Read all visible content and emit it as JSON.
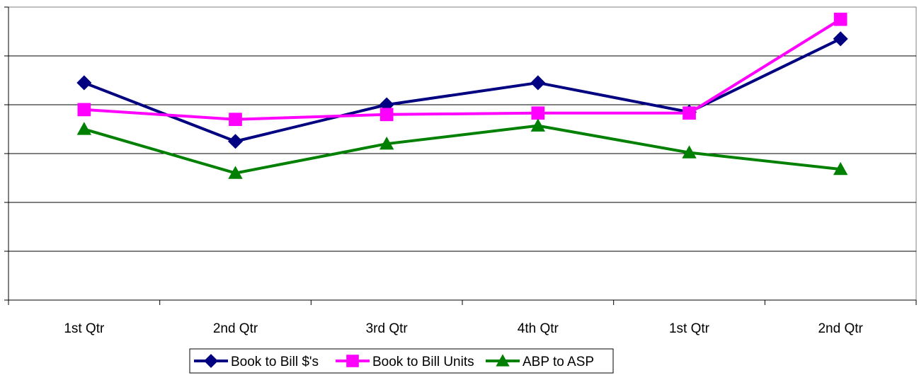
{
  "chart_data": {
    "type": "line",
    "title": "",
    "xlabel": "",
    "ylabel": "",
    "categories": [
      "1st Qtr",
      "2nd Qtr",
      "3rd Qtr",
      "4th Qtr",
      "1st Qtr",
      "2nd Qtr"
    ],
    "ylim": [
      0,
      6
    ],
    "y_gridlines": true,
    "y_tick_labels_shown": false,
    "legend_position": "bottom",
    "series": [
      {
        "name": "Book to Bill $'s",
        "color": "#000080",
        "marker": "diamond",
        "values": [
          4.45,
          3.25,
          4.0,
          4.45,
          3.85,
          5.35
        ]
      },
      {
        "name": "Book to Bill Units",
        "color": "#FF00FF",
        "marker": "square",
        "values": [
          3.9,
          3.7,
          3.8,
          3.83,
          3.83,
          5.75
        ]
      },
      {
        "name": "ABP to ASP",
        "color": "#008000",
        "marker": "triangle",
        "values": [
          3.5,
          2.6,
          3.2,
          3.57,
          3.02,
          2.68
        ]
      }
    ]
  }
}
